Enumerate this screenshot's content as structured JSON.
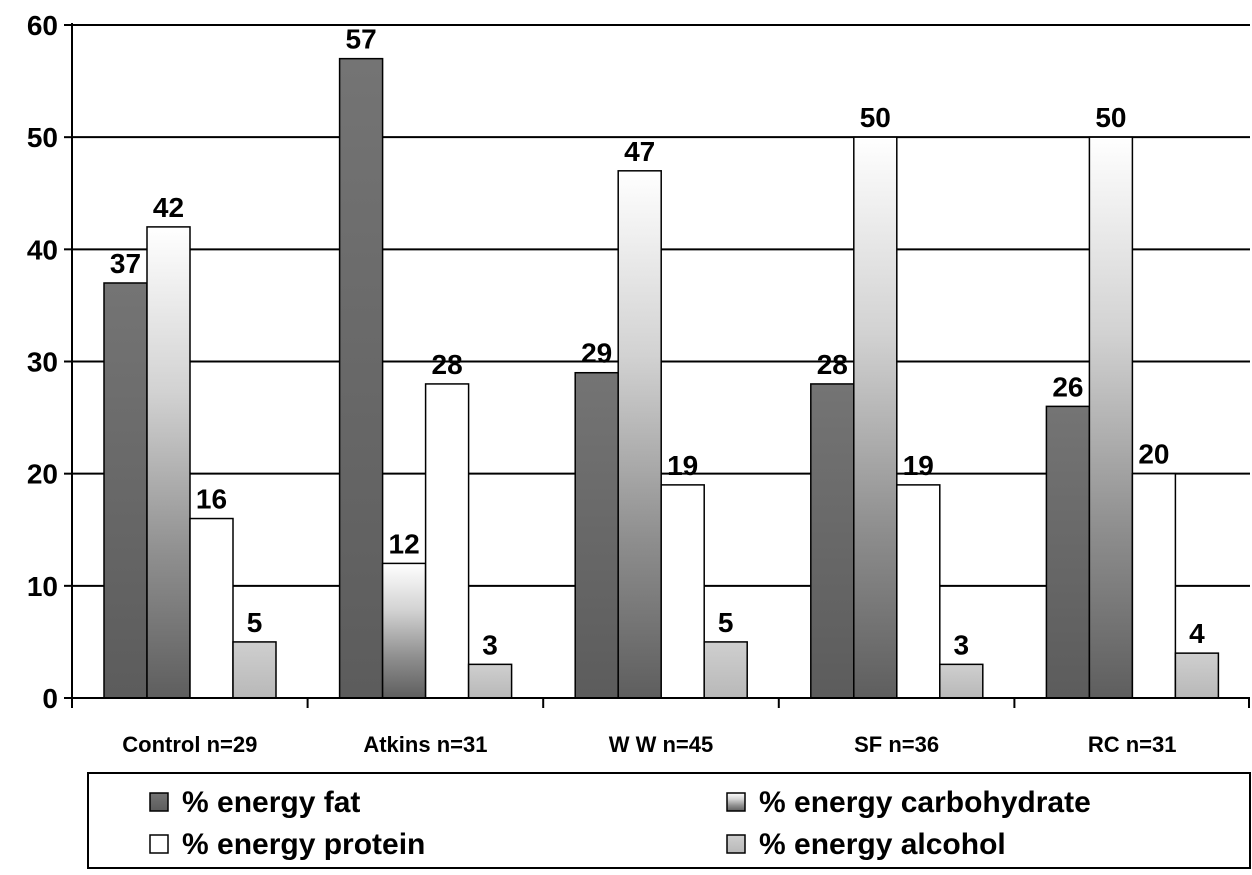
{
  "chart_data": {
    "type": "bar",
    "title": "",
    "xlabel": "",
    "ylabel": "",
    "ylim": [
      0,
      60
    ],
    "yticks": [
      0,
      10,
      20,
      30,
      40,
      50,
      60
    ],
    "grid": true,
    "legend_position": "bottom",
    "categories": [
      "Control n=29",
      "Atkins n=31",
      "W W n=45",
      "SF n=36",
      "RC n=31"
    ],
    "series": [
      {
        "name": "% energy fat",
        "values": [
          37,
          57,
          29,
          28,
          26
        ],
        "style": "dark-gradient",
        "color": "#6b6b6b"
      },
      {
        "name": "% energy carbohydrate",
        "values": [
          42,
          12,
          47,
          50,
          50
        ],
        "style": "vertical-gradient",
        "color": "#777777"
      },
      {
        "name": "% energy protein",
        "values": [
          16,
          28,
          19,
          19,
          20
        ],
        "style": "white",
        "color": "#ffffff"
      },
      {
        "name": "% energy alcohol",
        "values": [
          5,
          3,
          5,
          3,
          4
        ],
        "style": "light-gray",
        "color": "#c4c4c4"
      }
    ]
  }
}
